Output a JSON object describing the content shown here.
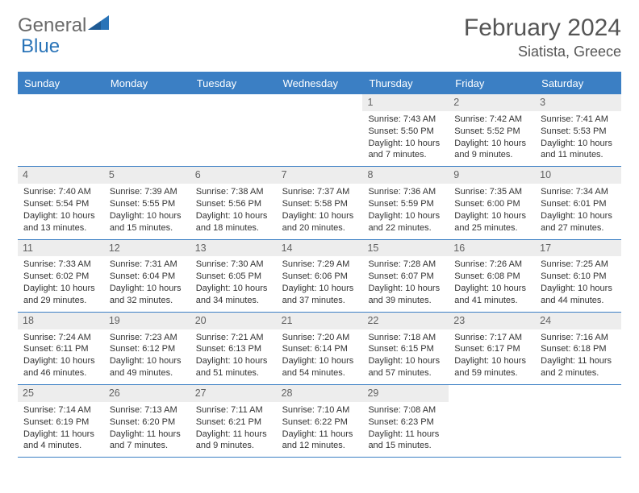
{
  "brand": {
    "part1": "General",
    "part2": "Blue"
  },
  "colors": {
    "brand_blue": "#2a74b8",
    "header_bar": "#3b7fc4",
    "daynum_bg": "#ededed",
    "text_gray": "#555555",
    "body_text": "#333333",
    "white": "#ffffff"
  },
  "title": "February 2024",
  "location": "Siatista, Greece",
  "weekdays": [
    "Sunday",
    "Monday",
    "Tuesday",
    "Wednesday",
    "Thursday",
    "Friday",
    "Saturday"
  ],
  "weeks": [
    [
      {
        "n": "",
        "sunrise": "",
        "sunset": "",
        "daylight": ""
      },
      {
        "n": "",
        "sunrise": "",
        "sunset": "",
        "daylight": ""
      },
      {
        "n": "",
        "sunrise": "",
        "sunset": "",
        "daylight": ""
      },
      {
        "n": "",
        "sunrise": "",
        "sunset": "",
        "daylight": ""
      },
      {
        "n": "1",
        "sunrise": "Sunrise: 7:43 AM",
        "sunset": "Sunset: 5:50 PM",
        "daylight": "Daylight: 10 hours and 7 minutes."
      },
      {
        "n": "2",
        "sunrise": "Sunrise: 7:42 AM",
        "sunset": "Sunset: 5:52 PM",
        "daylight": "Daylight: 10 hours and 9 minutes."
      },
      {
        "n": "3",
        "sunrise": "Sunrise: 7:41 AM",
        "sunset": "Sunset: 5:53 PM",
        "daylight": "Daylight: 10 hours and 11 minutes."
      }
    ],
    [
      {
        "n": "4",
        "sunrise": "Sunrise: 7:40 AM",
        "sunset": "Sunset: 5:54 PM",
        "daylight": "Daylight: 10 hours and 13 minutes."
      },
      {
        "n": "5",
        "sunrise": "Sunrise: 7:39 AM",
        "sunset": "Sunset: 5:55 PM",
        "daylight": "Daylight: 10 hours and 15 minutes."
      },
      {
        "n": "6",
        "sunrise": "Sunrise: 7:38 AM",
        "sunset": "Sunset: 5:56 PM",
        "daylight": "Daylight: 10 hours and 18 minutes."
      },
      {
        "n": "7",
        "sunrise": "Sunrise: 7:37 AM",
        "sunset": "Sunset: 5:58 PM",
        "daylight": "Daylight: 10 hours and 20 minutes."
      },
      {
        "n": "8",
        "sunrise": "Sunrise: 7:36 AM",
        "sunset": "Sunset: 5:59 PM",
        "daylight": "Daylight: 10 hours and 22 minutes."
      },
      {
        "n": "9",
        "sunrise": "Sunrise: 7:35 AM",
        "sunset": "Sunset: 6:00 PM",
        "daylight": "Daylight: 10 hours and 25 minutes."
      },
      {
        "n": "10",
        "sunrise": "Sunrise: 7:34 AM",
        "sunset": "Sunset: 6:01 PM",
        "daylight": "Daylight: 10 hours and 27 minutes."
      }
    ],
    [
      {
        "n": "11",
        "sunrise": "Sunrise: 7:33 AM",
        "sunset": "Sunset: 6:02 PM",
        "daylight": "Daylight: 10 hours and 29 minutes."
      },
      {
        "n": "12",
        "sunrise": "Sunrise: 7:31 AM",
        "sunset": "Sunset: 6:04 PM",
        "daylight": "Daylight: 10 hours and 32 minutes."
      },
      {
        "n": "13",
        "sunrise": "Sunrise: 7:30 AM",
        "sunset": "Sunset: 6:05 PM",
        "daylight": "Daylight: 10 hours and 34 minutes."
      },
      {
        "n": "14",
        "sunrise": "Sunrise: 7:29 AM",
        "sunset": "Sunset: 6:06 PM",
        "daylight": "Daylight: 10 hours and 37 minutes."
      },
      {
        "n": "15",
        "sunrise": "Sunrise: 7:28 AM",
        "sunset": "Sunset: 6:07 PM",
        "daylight": "Daylight: 10 hours and 39 minutes."
      },
      {
        "n": "16",
        "sunrise": "Sunrise: 7:26 AM",
        "sunset": "Sunset: 6:08 PM",
        "daylight": "Daylight: 10 hours and 41 minutes."
      },
      {
        "n": "17",
        "sunrise": "Sunrise: 7:25 AM",
        "sunset": "Sunset: 6:10 PM",
        "daylight": "Daylight: 10 hours and 44 minutes."
      }
    ],
    [
      {
        "n": "18",
        "sunrise": "Sunrise: 7:24 AM",
        "sunset": "Sunset: 6:11 PM",
        "daylight": "Daylight: 10 hours and 46 minutes."
      },
      {
        "n": "19",
        "sunrise": "Sunrise: 7:23 AM",
        "sunset": "Sunset: 6:12 PM",
        "daylight": "Daylight: 10 hours and 49 minutes."
      },
      {
        "n": "20",
        "sunrise": "Sunrise: 7:21 AM",
        "sunset": "Sunset: 6:13 PM",
        "daylight": "Daylight: 10 hours and 51 minutes."
      },
      {
        "n": "21",
        "sunrise": "Sunrise: 7:20 AM",
        "sunset": "Sunset: 6:14 PM",
        "daylight": "Daylight: 10 hours and 54 minutes."
      },
      {
        "n": "22",
        "sunrise": "Sunrise: 7:18 AM",
        "sunset": "Sunset: 6:15 PM",
        "daylight": "Daylight: 10 hours and 57 minutes."
      },
      {
        "n": "23",
        "sunrise": "Sunrise: 7:17 AM",
        "sunset": "Sunset: 6:17 PM",
        "daylight": "Daylight: 10 hours and 59 minutes."
      },
      {
        "n": "24",
        "sunrise": "Sunrise: 7:16 AM",
        "sunset": "Sunset: 6:18 PM",
        "daylight": "Daylight: 11 hours and 2 minutes."
      }
    ],
    [
      {
        "n": "25",
        "sunrise": "Sunrise: 7:14 AM",
        "sunset": "Sunset: 6:19 PM",
        "daylight": "Daylight: 11 hours and 4 minutes."
      },
      {
        "n": "26",
        "sunrise": "Sunrise: 7:13 AM",
        "sunset": "Sunset: 6:20 PM",
        "daylight": "Daylight: 11 hours and 7 minutes."
      },
      {
        "n": "27",
        "sunrise": "Sunrise: 7:11 AM",
        "sunset": "Sunset: 6:21 PM",
        "daylight": "Daylight: 11 hours and 9 minutes."
      },
      {
        "n": "28",
        "sunrise": "Sunrise: 7:10 AM",
        "sunset": "Sunset: 6:22 PM",
        "daylight": "Daylight: 11 hours and 12 minutes."
      },
      {
        "n": "29",
        "sunrise": "Sunrise: 7:08 AM",
        "sunset": "Sunset: 6:23 PM",
        "daylight": "Daylight: 11 hours and 15 minutes."
      },
      {
        "n": "",
        "sunrise": "",
        "sunset": "",
        "daylight": ""
      },
      {
        "n": "",
        "sunrise": "",
        "sunset": "",
        "daylight": ""
      }
    ]
  ]
}
